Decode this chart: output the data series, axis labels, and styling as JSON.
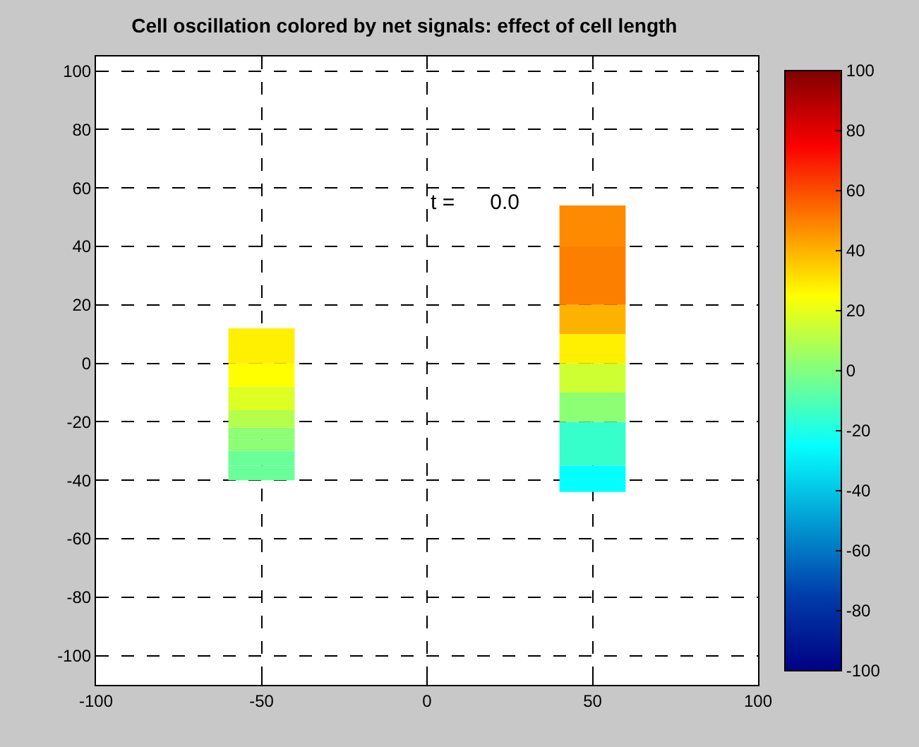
{
  "chart_data": {
    "type": "bar",
    "title": "Cell oscillation colored by net signals: effect of cell length",
    "x": [
      -50,
      50
    ],
    "series": [
      {
        "base": [
          -40,
          -44
        ],
        "values": [
          5,
          9
        ],
        "colors": [
          "#69ff99",
          "#05ffff"
        ]
      },
      {
        "base": [
          -35,
          -35
        ],
        "values": [
          5,
          15
        ],
        "colors": [
          "#69ff99",
          "#37ffcc"
        ]
      },
      {
        "base": [
          -30,
          -20
        ],
        "values": [
          4,
          10
        ],
        "colors": [
          "#8cff75",
          "#8cff75"
        ]
      },
      {
        "base": [
          -26,
          -10
        ],
        "values": [
          4,
          10
        ],
        "colors": [
          "#8cff75",
          "#cdff33"
        ]
      },
      {
        "base": [
          -22,
          0
        ],
        "values": [
          6,
          10
        ],
        "colors": [
          "#b4ff4c",
          "#fff000"
        ]
      },
      {
        "base": [
          -16,
          10
        ],
        "values": [
          8,
          10
        ],
        "colors": [
          "#dcff24",
          "#fdb200"
        ]
      },
      {
        "base": [
          -8,
          20
        ],
        "values": [
          8,
          20
        ],
        "colors": [
          "#ffff00",
          "#fc7f00"
        ]
      },
      {
        "base": [
          0,
          40
        ],
        "values": [
          12,
          14
        ],
        "colors": [
          "#fff000",
          "#fd8a00"
        ]
      }
    ],
    "xlim": [
      -100,
      100
    ],
    "xticks": [
      -100,
      -50,
      0,
      50,
      100
    ],
    "ylim": [
      -110,
      105
    ],
    "yticks": [
      -100,
      -80,
      -60,
      -40,
      -20,
      0,
      20,
      40,
      60,
      80,
      100
    ],
    "clim": [
      -100,
      100
    ],
    "cticks": [
      -100,
      -80,
      -60,
      -40,
      -20,
      0,
      20,
      40,
      60,
      80,
      100
    ],
    "grid": true,
    "line_style": "dashed",
    "annotations": [
      "t =      0.0"
    ]
  }
}
